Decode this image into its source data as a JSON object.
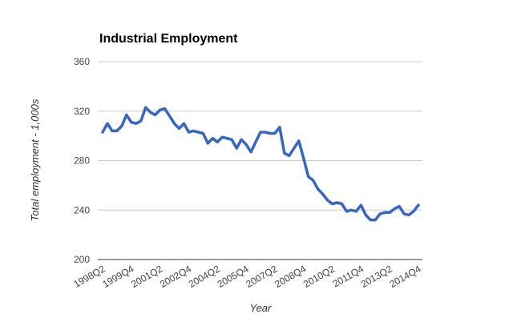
{
  "chart_data": {
    "type": "line",
    "title": "Industrial Employment",
    "x_label": "Year",
    "y_label": "Total employment - 1,000s",
    "categories": [
      "1998Q2",
      null,
      null,
      null,
      null,
      null,
      "1999Q4",
      null,
      null,
      null,
      null,
      null,
      "2001Q2",
      null,
      null,
      null,
      null,
      null,
      "2002Q4",
      null,
      null,
      null,
      null,
      null,
      "2004Q2",
      null,
      null,
      null,
      null,
      null,
      "2005Q4",
      null,
      null,
      null,
      null,
      null,
      "2007Q2",
      null,
      null,
      null,
      null,
      null,
      "2008Q4",
      null,
      null,
      null,
      null,
      null,
      "2010Q2",
      null,
      null,
      null,
      null,
      null,
      "2011Q4",
      null,
      null,
      null,
      null,
      null,
      "2013Q2",
      null,
      null,
      null,
      null,
      null,
      "2014Q4"
    ],
    "series": [
      {
        "name": "Total employment",
        "color": "#3366cc",
        "values": [
          303,
          310,
          304,
          304,
          308,
          317,
          311,
          310,
          312,
          323,
          319,
          317,
          321,
          322,
          316,
          310,
          306,
          310,
          303,
          304,
          303,
          302,
          294,
          298,
          295,
          299,
          298,
          297,
          290,
          297,
          293,
          287,
          295,
          303,
          303,
          302,
          302,
          307,
          286,
          284,
          290,
          296,
          282,
          267,
          264,
          257,
          253,
          248,
          245,
          246,
          245,
          239,
          240,
          239,
          244,
          236,
          232,
          232,
          237,
          238,
          238,
          241,
          243,
          237,
          236,
          239,
          244
        ]
      }
    ],
    "ylim": [
      200,
      360
    ],
    "yticks": [
      200,
      240,
      280,
      320,
      360
    ],
    "grid": true
  }
}
